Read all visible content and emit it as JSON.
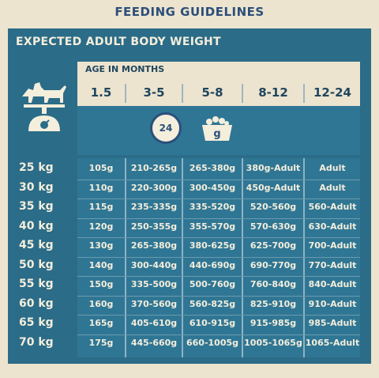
{
  "title": "FEEDING GUIDELINES",
  "panel_heading": "EXPECTED ADULT BODY WEIGHT",
  "age_label": "AGE IN MONTHS",
  "age_columns": [
    "1.5",
    "3-5",
    "5-8",
    "8-12",
    "12-24"
  ],
  "clock_value": "24",
  "bowl_label": "g",
  "colors": {
    "background": "#ede4cf",
    "panel": "#2b6c88",
    "text_light": "#f4eedc",
    "text_dark": "#20465f"
  },
  "rows": [
    {
      "weight": "25 kg",
      "values": [
        "105g",
        "210-265g",
        "265-380g",
        "380g-Adult",
        "Adult"
      ]
    },
    {
      "weight": "30 kg",
      "values": [
        "110g",
        "220-300g",
        "300-450g",
        "450g-Adult",
        "Adult"
      ]
    },
    {
      "weight": "35 kg",
      "values": [
        "115g",
        "235-335g",
        "335-520g",
        "520-560g",
        "560-Adult"
      ]
    },
    {
      "weight": "40 kg",
      "values": [
        "120g",
        "250-355g",
        "355-570g",
        "570-630g",
        "630-Adult"
      ]
    },
    {
      "weight": "45 kg",
      "values": [
        "130g",
        "265-380g",
        "380-625g",
        "625-700g",
        "700-Adult"
      ]
    },
    {
      "weight": "50 kg",
      "values": [
        "140g",
        "300-440g",
        "440-690g",
        "690-770g",
        "770-Adult"
      ]
    },
    {
      "weight": "55 kg",
      "values": [
        "150g",
        "335-500g",
        "500-760g",
        "760-840g",
        "840-Adult"
      ]
    },
    {
      "weight": "60 kg",
      "values": [
        "160g",
        "370-560g",
        "560-825g",
        "825-910g",
        "910-Adult"
      ]
    },
    {
      "weight": "65 kg",
      "values": [
        "165g",
        "405-610g",
        "610-915g",
        "915-985g",
        "985-Adult"
      ]
    },
    {
      "weight": "70 kg",
      "values": [
        "175g",
        "445-660g",
        "660-1005g",
        "1005-1065g",
        "1065-Adult"
      ]
    }
  ]
}
